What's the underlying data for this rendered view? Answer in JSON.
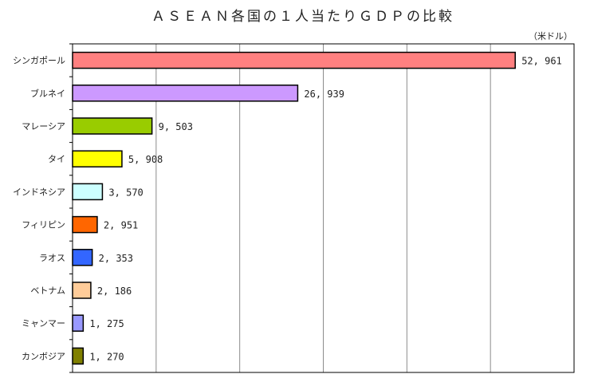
{
  "chart_data": {
    "type": "bar",
    "orientation": "horizontal",
    "title": "ＡＳＥＡＮ各国の１人当たりＧＤＰの比較",
    "unit": "（米ドル）",
    "xlim": [
      0,
      60000
    ],
    "grid": true,
    "categories": [
      "シンガポール",
      "ブルネイ",
      "マレーシア",
      "タイ",
      "インドネシア",
      "フィリピン",
      "ラオス",
      "ベトナム",
      "ミャンマー",
      "カンボジア"
    ],
    "values": [
      52961,
      26939,
      9503,
      5908,
      3570,
      2951,
      2353,
      2186,
      1275,
      1270
    ],
    "value_labels": [
      "52, 961",
      "26, 939",
      "9, 503",
      "5, 908",
      "3, 570",
      "2, 951",
      "2, 353",
      "2, 186",
      "1, 275",
      "1, 270"
    ],
    "colors": [
      "#ff8080",
      "#cc99ff",
      "#99cc00",
      "#ffff00",
      "#ccffff",
      "#ff6600",
      "#3366ff",
      "#ffcc99",
      "#9999ff",
      "#808000"
    ]
  }
}
